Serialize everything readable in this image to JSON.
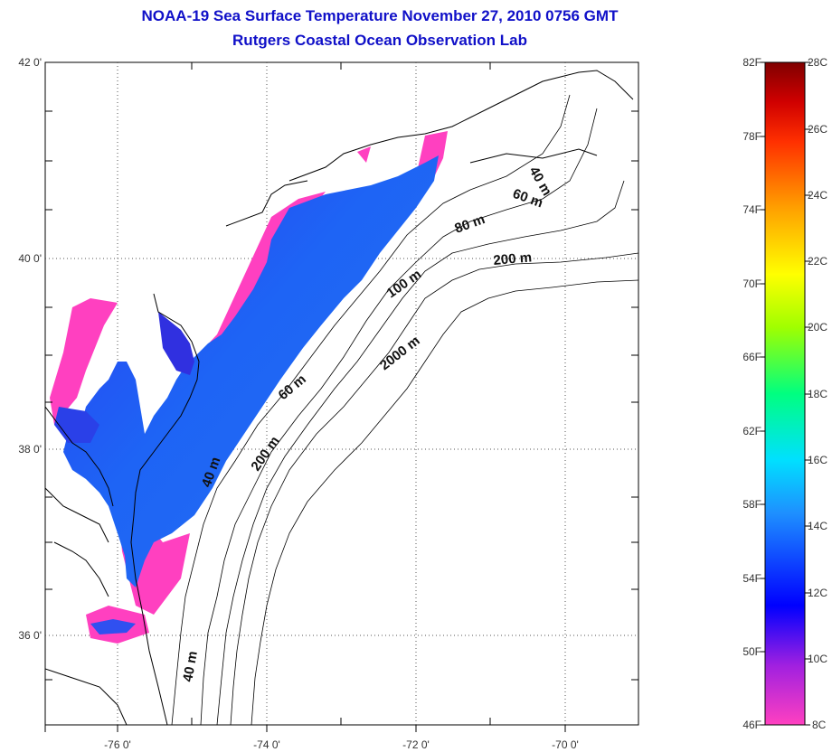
{
  "title": {
    "line1": "NOAA-19 Sea Surface Temperature November 27, 2010 0756 GMT",
    "line2": "Rutgers Coastal Ocean Observation Lab"
  },
  "map": {
    "lat_labels": [
      "42 0'",
      "40 0'",
      "38 0'",
      "36 0'"
    ],
    "lon_labels": [
      "-76 0'",
      "-74 0'",
      "-72 0'",
      "-70 0'"
    ],
    "depth_labels": [
      "40 m",
      "60 m",
      "80 m",
      "200 m",
      "100 m",
      "2000 m",
      "60 m",
      "200 m",
      "40 m",
      "40 m"
    ]
  },
  "colorbar": {
    "fahrenheit_labels": [
      "82F",
      "78F",
      "74F",
      "70F",
      "66F",
      "62F",
      "58F",
      "54F",
      "50F",
      "46F"
    ],
    "celsius_labels": [
      "28C",
      "26C",
      "24C",
      "22C",
      "20C",
      "18C",
      "16C",
      "14C",
      "12C",
      "10C",
      "8C"
    ],
    "colors": [
      "#ff40c0",
      "#8a2be2",
      "#0000ff",
      "#1e90ff",
      "#00e0ff",
      "#00ff80",
      "#a0ff00",
      "#ffff00",
      "#ffa000",
      "#ff3000",
      "#d00000",
      "#800000"
    ]
  }
}
